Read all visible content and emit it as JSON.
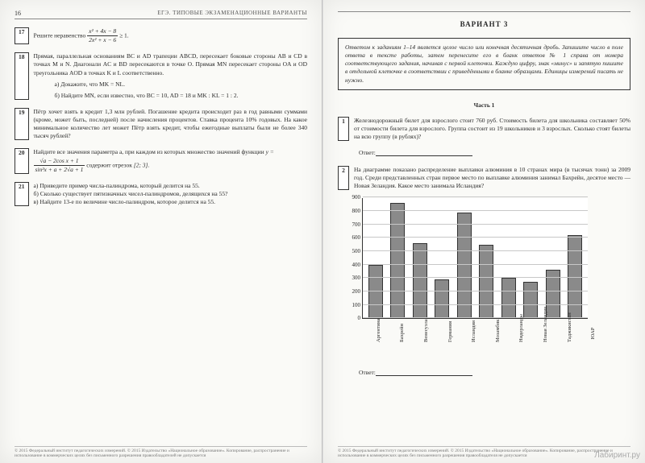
{
  "left": {
    "pagenum": "16",
    "header": "ЕГЭ. ТИПОВЫЕ ЭКЗАМЕНАЦИОННЫЕ ВАРИАНТЫ",
    "t17": {
      "num": "17",
      "lead": "Решите неравенство ",
      "frac_n": "x² + 4x − 8",
      "frac_d": "2x² + x − 6",
      "tail": " ≥ 1."
    },
    "t18": {
      "num": "18",
      "text": "Прямая, параллельная основаниям BC и AD трапеции ABCD, пересекает боковые стороны AB и CD в точках M и N. Диагонали AC и BD пересекаются в точке O. Прямая MN пересекает стороны OA и OD треугольника AOD в точках K и L соответственно.",
      "a": "а) Докажите, что MK = NL.",
      "b": "б) Найдите MN, если известно, что BC = 10, AD = 18 и MK : KL = 1 : 2."
    },
    "t19": {
      "num": "19",
      "text": "Пётр хочет взять в кредит 1,3 млн рублей. Погашение кредита происходит раз в год равными суммами (кроме, может быть, последней) после начисления процентов. Ставка процента 10% годовых. На какое минимальное количество лет может Пётр взять кредит, чтобы ежегодные выплаты были не более 340 тысяч рублей?"
    },
    "t20": {
      "num": "20",
      "lead": "Найдите все значения параметра a, при каждом из которых множество значений функции ",
      "y": "y = ",
      "frac_n": "√a − 2cos x + 1",
      "frac_d": "sin²x + a + 2√a + 1",
      "tail1": " содержит отрезок ",
      "seg": "[2; 3].",
      "tail2": ""
    },
    "t21": {
      "num": "21",
      "a": "а) Приведите пример числа-палиндрома, который делится на 55.",
      "b": "б) Сколько существует пятизначных чисел-палиндромов, делящихся на 55?",
      "c": "в) Найдите 13-е по величине число-палиндром, которое делится на 55."
    },
    "footer": "© 2015 Федеральный институт педагогических измерений. © 2015 Издательство «Национальное образование». Копирование, распространение и использование в коммерческих целях без письменного разрешения правообладателей не допускается"
  },
  "right": {
    "variant": "ВАРИАНТ 3",
    "instr": "Ответом к заданиям 1–14 является целое число или конечная десятичная дробь. Запишите число в поле ответа в тексте работы, затем перенесите его в бланк ответов № 1 справа от номера соответствующего задания, начиная с первой клеточки. Каждую цифру, знак «минус» и запятую пишите в отдельной клеточке в соответствии с приведёнными в бланке образцами. Единицы измерений писать не нужно.",
    "part": "Часть 1",
    "t1": {
      "num": "1",
      "text": "Железнодорожный билет для взрослого стоит 760 руб. Стоимость билета для школьника составляет 50% от стоимости билета для взрослого. Группа состоит из 19 школьников и 3 взрослых. Сколько стоят билеты на всю группу (в рублях)?"
    },
    "t2": {
      "num": "2",
      "text": "На диаграмме показано распределение выплавки алюминия в 10 странах мира (в тысячах тонн) за 2009 год. Среди представленных стран первое место по выплавке алюминия занимал Бахрейн, десятое место — Новая Зеландия. Какое место занимала Исландия?"
    },
    "answer": "Ответ:",
    "chart": {
      "type": "bar",
      "ymax": 900,
      "ystep": 100,
      "yticks": [
        0,
        100,
        200,
        300,
        400,
        500,
        600,
        700,
        800,
        900
      ],
      "categories": [
        "Аргентина",
        "Бахрейн",
        "Венесуэла",
        "Германия",
        "Исландия",
        "Мозамбик",
        "Нидерланды",
        "Новая Зеландия",
        "Таджикистан",
        "ЮАР"
      ],
      "values": [
        400,
        860,
        560,
        290,
        790,
        550,
        300,
        270,
        360,
        620
      ],
      "bar_fill": "#8a8a8a",
      "bar_border": "#333333",
      "grid_color": "#c8c8c8",
      "axis_color": "#333333",
      "bg": "#ffffff",
      "font_size": 7
    },
    "footer": "© 2015 Федеральный институт педагогических измерений. © 2015 Издательство «Национальное образование». Копирование, распространение и использование в коммерческих целях без письменного разрешения правообладателя не допускается",
    "watermark": "Лабиринт.ру"
  }
}
